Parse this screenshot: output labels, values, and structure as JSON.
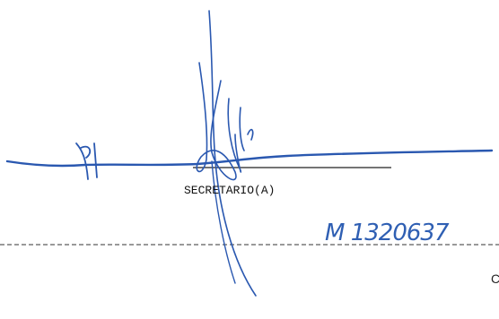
{
  "signature_block": {
    "role": "SECRETARIO(A)",
    "handwritten_code": "M 1320637",
    "footer_fragment": "C"
  }
}
